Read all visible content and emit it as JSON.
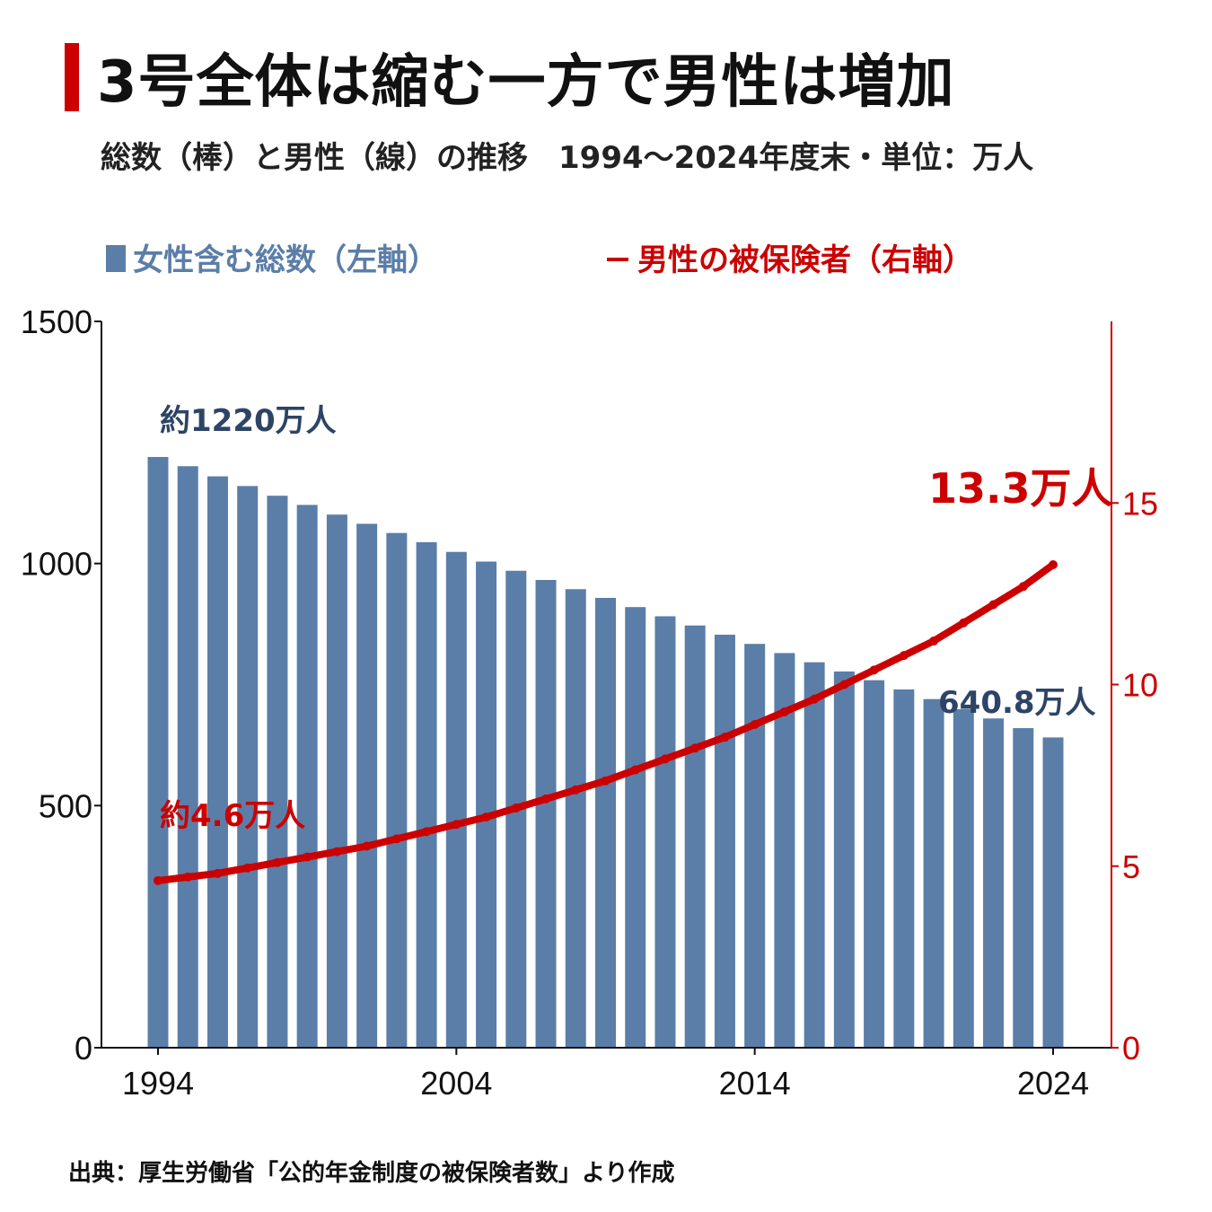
{
  "title": "3号全体は縮む一方で男性は増加",
  "subtitle": "総数（棒）と男性（線）の推移　1994〜2024年度末・単位：万人",
  "legend": {
    "bars_label": "女性含む総数（左軸）",
    "line_label": "男性の被保険者（右軸）",
    "line_marker": "－"
  },
  "source": "出典：厚生労働省「公的年金制度の被保険者数」より作成",
  "colors": {
    "bar": "#5b7ea8",
    "line": "#cc0000",
    "title_accent": "#cc0000",
    "bar_label_text": "#2d4466",
    "axis": "#111111"
  },
  "chart_data": {
    "type": "bar",
    "x": [
      1994,
      1995,
      1996,
      1997,
      1998,
      1999,
      2000,
      2001,
      2002,
      2003,
      2004,
      2005,
      2006,
      2007,
      2008,
      2009,
      2010,
      2011,
      2012,
      2013,
      2014,
      2015,
      2016,
      2017,
      2018,
      2019,
      2020,
      2021,
      2022,
      2023,
      2024
    ],
    "x_ticks": [
      "1994",
      "2004",
      "2014",
      "2024"
    ],
    "left_axis": {
      "ylim": [
        0,
        1500
      ],
      "ticks": [
        "0",
        "500",
        "1000",
        "1500"
      ]
    },
    "right_axis": {
      "ylim": [
        0,
        20
      ],
      "ticks": [
        "0",
        "5",
        "10",
        "15"
      ]
    },
    "series": [
      {
        "name": "女性含む総数（左軸）",
        "type": "bar",
        "axis": "left",
        "values": [
          1220,
          1201,
          1180,
          1160,
          1140,
          1121,
          1101,
          1082,
          1063,
          1044,
          1024,
          1004,
          985,
          966,
          947,
          929,
          910,
          891,
          872,
          853,
          834,
          815,
          796,
          777,
          759,
          740,
          720,
          699,
          680,
          660,
          640.8
        ]
      },
      {
        "name": "男性の被保険者（右軸）",
        "type": "line",
        "axis": "right",
        "values": [
          4.6,
          4.7,
          4.8,
          4.95,
          5.1,
          5.25,
          5.4,
          5.55,
          5.75,
          5.95,
          6.15,
          6.35,
          6.6,
          6.85,
          7.1,
          7.35,
          7.65,
          7.95,
          8.25,
          8.55,
          8.9,
          9.25,
          9.6,
          10.0,
          10.4,
          10.8,
          11.2,
          11.7,
          12.2,
          12.7,
          13.3
        ]
      }
    ],
    "annotations": {
      "bar_first": "約1220万人",
      "bar_last": "640.8万人",
      "line_first": "約4.6万人",
      "line_last": "13.3万人"
    }
  }
}
